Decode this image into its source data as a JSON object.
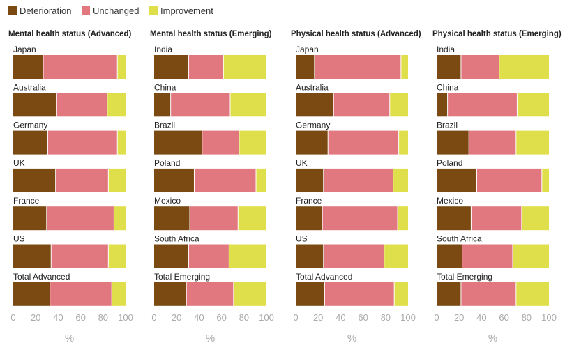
{
  "chart_data": {
    "type": "bar",
    "orientation": "horizontal",
    "stacked": true,
    "legend": {
      "position": "top-left",
      "entries": [
        {
          "name": "Deterioration",
          "color": "#7B4A12"
        },
        {
          "name": "Unchanged",
          "color": "#E2787F"
        },
        {
          "name": "Improvement",
          "color": "#DFDF4B"
        }
      ]
    },
    "x_ticks": [
      "0",
      "20",
      "40",
      "60",
      "80",
      "100"
    ],
    "xlabel": "%",
    "xlim": [
      0,
      100
    ],
    "panels": [
      {
        "title": "Mental health status (Advanced)",
        "categories": [
          "Japan",
          "Australia",
          "Germany",
          "UK",
          "France",
          "US",
          "Total Advanced"
        ],
        "series": [
          {
            "name": "Deterioration",
            "values": [
              27,
              39,
              31,
              38,
              30,
              34,
              33
            ]
          },
          {
            "name": "Unchanged",
            "values": [
              66,
              45,
              62,
              47,
              60,
              51,
              55
            ]
          },
          {
            "name": "Improvement",
            "values": [
              7,
              16,
              7,
              15,
              10,
              15,
              12
            ]
          }
        ]
      },
      {
        "title": "Mental health status (Emerging)",
        "categories": [
          "India",
          "China",
          "Brazil",
          "Poland",
          "Mexico",
          "South Africa",
          "Total Emerging"
        ],
        "series": [
          {
            "name": "Deterioration",
            "values": [
              31,
              15,
              43,
              36,
              32,
              31,
              29
            ]
          },
          {
            "name": "Unchanged",
            "values": [
              31,
              53,
              33,
              55,
              43,
              36,
              42
            ]
          },
          {
            "name": "Improvement",
            "values": [
              38,
              32,
              24,
              9,
              25,
              33,
              29
            ]
          }
        ]
      },
      {
        "title": "Physical health status (Advanced)",
        "categories": [
          "Japan",
          "Australia",
          "Germany",
          "UK",
          "France",
          "US",
          "Total Advanced"
        ],
        "series": [
          {
            "name": "Deterioration",
            "values": [
              17,
              34,
              29,
              25,
              24,
              25,
              26
            ]
          },
          {
            "name": "Unchanged",
            "values": [
              77,
              50,
              63,
              62,
              67,
              54,
              62
            ]
          },
          {
            "name": "Improvement",
            "values": [
              6,
              16,
              8,
              13,
              9,
              21,
              12
            ]
          }
        ]
      },
      {
        "title": "Physical health status (Emerging)",
        "categories": [
          "India",
          "China",
          "Brazil",
          "Poland",
          "Mexico",
          "South Africa",
          "Total Emerging"
        ],
        "series": [
          {
            "name": "Deterioration",
            "values": [
              22,
              10,
              29,
              36,
              31,
              23,
              22
            ]
          },
          {
            "name": "Unchanged",
            "values": [
              34,
              62,
              42,
              58,
              45,
              45,
              49
            ]
          },
          {
            "name": "Improvement",
            "values": [
              44,
              28,
              29,
              6,
              24,
              32,
              29
            ]
          }
        ]
      }
    ]
  }
}
